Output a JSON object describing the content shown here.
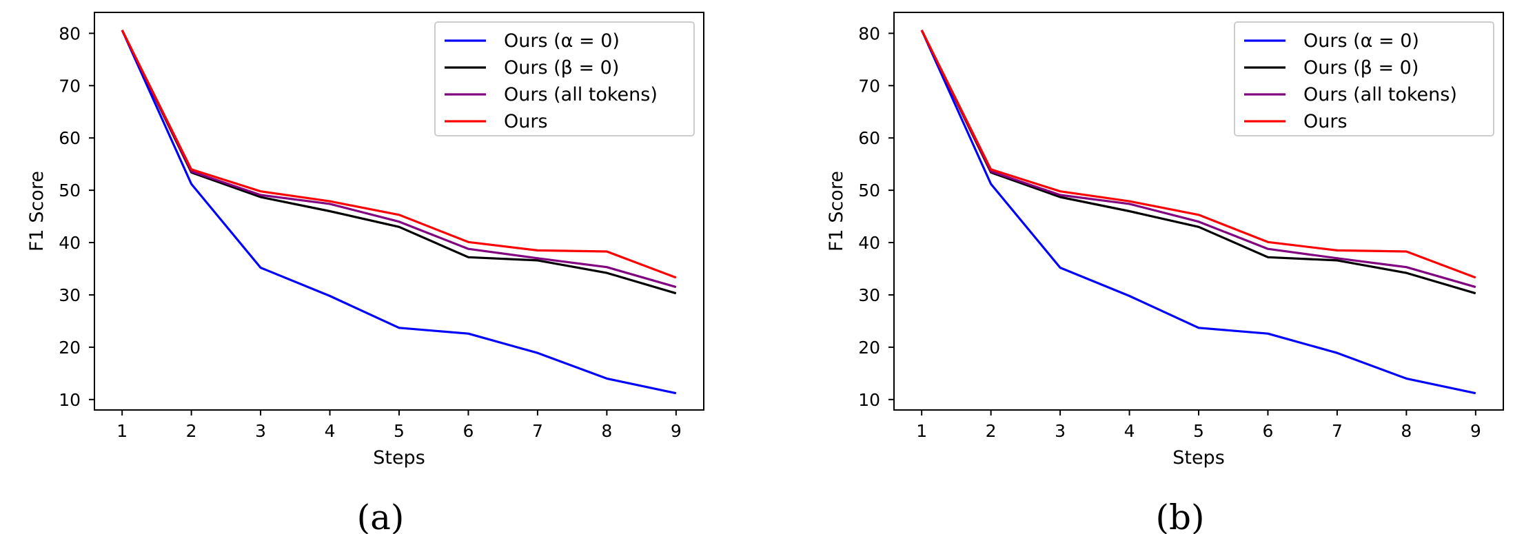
{
  "chart_data": [
    {
      "type": "line",
      "caption": "(a)",
      "xlabel": "Steps",
      "ylabel": "F1 Score",
      "x": [
        1,
        2,
        3,
        4,
        5,
        6,
        7,
        8,
        9
      ],
      "xlim": [
        0.6,
        9.4
      ],
      "ylim": [
        8,
        84
      ],
      "yticks": [
        10,
        20,
        30,
        40,
        50,
        60,
        70,
        80
      ],
      "legend_loc": "upper right",
      "series": [
        {
          "name": "Ours (α = 0)",
          "color": "#0000ff",
          "values": [
            80.6,
            51.2,
            35.2,
            29.8,
            23.7,
            22.6,
            18.9,
            14.0,
            11.2
          ]
        },
        {
          "name": "Ours (β = 0)",
          "color": "#000000",
          "values": [
            80.6,
            53.4,
            48.7,
            46.0,
            43.0,
            37.2,
            36.6,
            34.2,
            30.3
          ]
        },
        {
          "name": "Ours (all tokens)",
          "color": "#800080",
          "values": [
            80.6,
            53.6,
            49.1,
            47.4,
            44.0,
            38.8,
            37.0,
            35.3,
            31.5
          ]
        },
        {
          "name": "Ours",
          "color": "#ff0000",
          "values": [
            80.6,
            54.0,
            49.8,
            47.9,
            45.3,
            40.1,
            38.5,
            38.3,
            33.3
          ]
        }
      ]
    },
    {
      "type": "line",
      "caption": "(b)",
      "xlabel": "Steps",
      "ylabel": "F1 Score",
      "x": [
        1,
        2,
        3,
        4,
        5,
        6,
        7,
        8,
        9
      ],
      "xlim": [
        0.6,
        9.4
      ],
      "ylim": [
        8,
        84
      ],
      "yticks": [
        10,
        20,
        30,
        40,
        50,
        60,
        70,
        80
      ],
      "legend_loc": "upper right",
      "series": [
        {
          "name": "Ours (α = 0)",
          "color": "#0000ff",
          "values": [
            80.6,
            51.2,
            35.2,
            29.8,
            23.7,
            22.6,
            18.9,
            14.0,
            11.2
          ]
        },
        {
          "name": "Ours (β = 0)",
          "color": "#000000",
          "values": [
            80.6,
            53.4,
            48.7,
            46.0,
            43.0,
            37.2,
            36.6,
            34.2,
            30.3
          ]
        },
        {
          "name": "Ours (all tokens)",
          "color": "#800080",
          "values": [
            80.6,
            53.6,
            49.1,
            47.4,
            44.0,
            38.8,
            37.0,
            35.3,
            31.5
          ]
        },
        {
          "name": "Ours",
          "color": "#ff0000",
          "values": [
            80.6,
            54.0,
            49.8,
            47.9,
            45.3,
            40.1,
            38.5,
            38.3,
            33.3
          ]
        }
      ]
    }
  ]
}
